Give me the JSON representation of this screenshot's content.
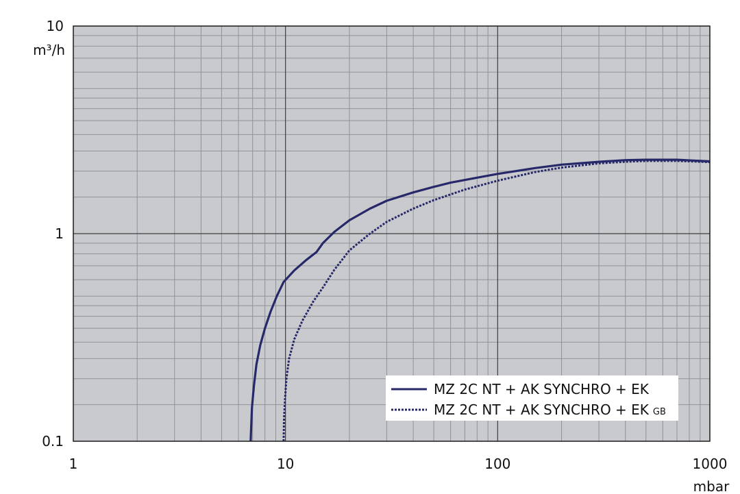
{
  "chart_data": {
    "type": "line",
    "x_scale": "log",
    "y_scale": "log",
    "xlim": [
      1,
      1000
    ],
    "ylim": [
      0.1,
      10
    ],
    "x_ticks": [
      "1",
      "10",
      "100",
      "1000"
    ],
    "y_ticks": [
      "0.1",
      "1",
      "10"
    ],
    "xlabel": "mbar",
    "ylabel": "m³/h",
    "grid": true,
    "legend_position": "bottom-right",
    "background_color": "#c8cacd",
    "line_color": "#26286a",
    "series": [
      {
        "name": "MZ 2C NT + AK SYNCHRO + EK",
        "name_suffix": "",
        "style": "solid",
        "x": [
          6.85,
          6.95,
          7.1,
          7.3,
          7.6,
          8.0,
          8.5,
          9.1,
          9.8,
          11.0,
          12.5,
          14.0,
          15.0,
          17.0,
          20.0,
          25.0,
          30.0,
          40.0,
          50.0,
          60.0,
          80.0,
          100.0,
          150.0,
          200.0,
          300.0,
          400.0,
          500.0,
          700.0,
          1000.0
        ],
        "y": [
          0.1,
          0.145,
          0.185,
          0.235,
          0.29,
          0.35,
          0.42,
          0.5,
          0.585,
          0.665,
          0.745,
          0.815,
          0.9,
          1.02,
          1.16,
          1.32,
          1.44,
          1.58,
          1.68,
          1.76,
          1.86,
          1.94,
          2.07,
          2.15,
          2.22,
          2.26,
          2.27,
          2.27,
          2.23
        ]
      },
      {
        "name": "MZ 2C NT + AK SYNCHRO + EK",
        "name_suffix": "GB",
        "style": "dotted",
        "x": [
          9.8,
          9.85,
          9.95,
          10.1,
          10.4,
          11.0,
          12.0,
          13.5,
          15.0,
          17.0,
          20.0,
          25.0,
          30.0,
          40.0,
          50.0,
          70.0,
          100.0,
          150.0,
          200.0,
          300.0,
          400.0,
          500.0,
          700.0,
          1000.0
        ],
        "y": [
          0.1,
          0.13,
          0.16,
          0.2,
          0.25,
          0.31,
          0.38,
          0.47,
          0.55,
          0.67,
          0.83,
          1.0,
          1.14,
          1.32,
          1.45,
          1.63,
          1.8,
          1.98,
          2.08,
          2.18,
          2.22,
          2.24,
          2.24,
          2.21
        ]
      }
    ]
  }
}
